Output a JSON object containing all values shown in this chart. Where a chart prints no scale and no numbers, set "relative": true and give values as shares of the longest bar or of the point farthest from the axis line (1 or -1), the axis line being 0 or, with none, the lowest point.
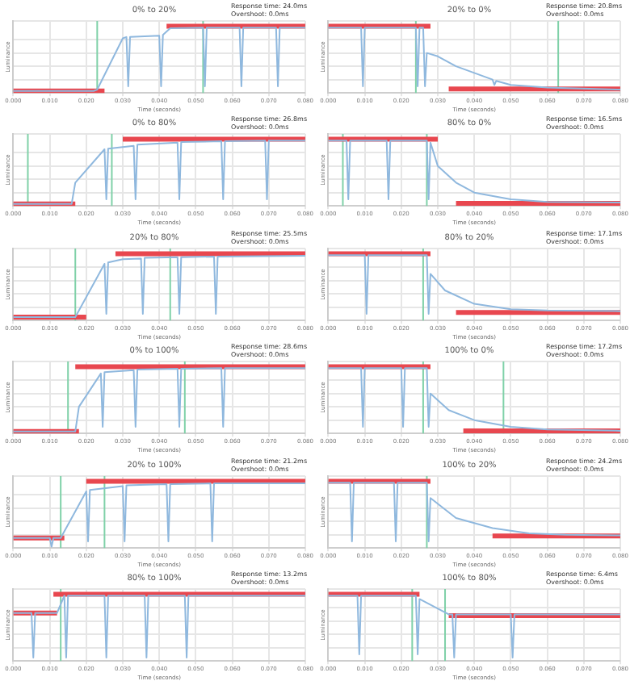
{
  "chart_data": [
    {
      "type": "line",
      "title": "0% to 20%",
      "annotations": [
        "Response time: 24.0ms",
        "Overshoot: 0.0ms"
      ],
      "xlabel": "Time (seconds)",
      "ylabel": "Luminance",
      "relative": true,
      "grid": true,
      "legend": false,
      "marker": "none",
      "xlim": [
        0,
        0.08
      ],
      "xticks": [
        {
          "value": 0,
          "label": "0.000"
        },
        {
          "value": 0.01,
          "label": "0.010"
        },
        {
          "value": 0.02,
          "label": "0.020"
        },
        {
          "value": 0.03,
          "label": "0.030"
        },
        {
          "value": 0.04,
          "label": "0.040"
        },
        {
          "value": 0.05,
          "label": "0.050"
        },
        {
          "value": 0.06,
          "label": "0.060"
        },
        {
          "value": 0.07,
          "label": "0.070"
        },
        {
          "value": 0.08,
          "label": "0.080"
        }
      ],
      "ref_lines": [
        {
          "axis": "x",
          "value": 0.023,
          "color": "#7fd1a8"
        },
        {
          "axis": "x",
          "value": 0.052,
          "color": "#7fd1a8"
        }
      ],
      "series": [
        {
          "color": "#8fb8de",
          "x": [
            0,
            0.022,
            0.023,
            0.03,
            0.031,
            0.0315,
            0.032,
            0.04,
            0.0405,
            0.041,
            0.043,
            0.052,
            0.0525,
            0.053,
            0.062,
            0.0625,
            0.063,
            0.072,
            0.0725,
            0.073,
            0.08
          ],
          "values": [
            0.03,
            0.03,
            0.05,
            0.82,
            0.84,
            0.1,
            0.84,
            0.86,
            0.1,
            0.87,
            0.97,
            0.98,
            0.1,
            0.98,
            0.98,
            0.1,
            0.98,
            0.98,
            0.1,
            0.98,
            0.98
          ]
        },
        {
          "color": "#e8474f",
          "x": [
            0,
            0.025
          ],
          "values": [
            0.03,
            0.03
          ]
        },
        {
          "color": "#e8474f",
          "x": [
            0.042,
            0.08
          ],
          "values": [
            1,
            1
          ]
        }
      ]
    },
    {
      "type": "line",
      "title": "20% to 0%",
      "annotations": [
        "Response time: 20.8ms",
        "Overshoot: 0.0ms"
      ],
      "xlabel": "Time (seconds)",
      "ylabel": "Luminance",
      "relative": true,
      "grid": true,
      "legend": false,
      "marker": "none",
      "xlim": [
        0,
        0.08
      ],
      "xticks": [
        {
          "value": 0,
          "label": "0.000"
        },
        {
          "value": 0.01,
          "label": "0.010"
        },
        {
          "value": 0.02,
          "label": "0.020"
        },
        {
          "value": 0.03,
          "label": "0.030"
        },
        {
          "value": 0.04,
          "label": "0.040"
        },
        {
          "value": 0.05,
          "label": "0.050"
        },
        {
          "value": 0.06,
          "label": "0.060"
        },
        {
          "value": 0.07,
          "label": "0.070"
        },
        {
          "value": 0.08,
          "label": "0.080"
        }
      ],
      "ref_lines": [
        {
          "axis": "x",
          "value": 0.024,
          "color": "#7fd1a8"
        },
        {
          "axis": "x",
          "value": 0.063,
          "color": "#7fd1a8"
        }
      ],
      "series": [
        {
          "color": "#8fb8de",
          "x": [
            0,
            0.009,
            0.0095,
            0.01,
            0.024,
            0.0245,
            0.025,
            0.026,
            0.0265,
            0.027,
            0.03,
            0.035,
            0.04,
            0.045,
            0.0455,
            0.046,
            0.05,
            0.06,
            0.08
          ],
          "values": [
            0.98,
            0.98,
            0.1,
            0.98,
            0.98,
            0.1,
            0.98,
            0.98,
            0.1,
            0.6,
            0.55,
            0.4,
            0.3,
            0.2,
            0.12,
            0.18,
            0.12,
            0.08,
            0.05
          ]
        },
        {
          "color": "#e8474f",
          "x": [
            0,
            0.028
          ],
          "values": [
            1,
            1
          ]
        },
        {
          "color": "#e8474f",
          "x": [
            0.033,
            0.08
          ],
          "values": [
            0.06,
            0.06
          ]
        }
      ]
    },
    {
      "type": "line",
      "title": "0% to 80%",
      "annotations": [
        "Response time: 26.8ms",
        "Overshoot: 0.0ms"
      ],
      "xlabel": "Time (seconds)",
      "ylabel": "Luminance",
      "relative": true,
      "grid": true,
      "legend": false,
      "marker": "none",
      "xlim": [
        0,
        0.08
      ],
      "xticks": [
        {
          "value": 0,
          "label": "0.000"
        },
        {
          "value": 0.01,
          "label": "0.010"
        },
        {
          "value": 0.02,
          "label": "0.020"
        },
        {
          "value": 0.03,
          "label": "0.030"
        },
        {
          "value": 0.04,
          "label": "0.040"
        },
        {
          "value": 0.05,
          "label": "0.050"
        },
        {
          "value": 0.06,
          "label": "0.060"
        },
        {
          "value": 0.07,
          "label": "0.070"
        },
        {
          "value": 0.08,
          "label": "0.080"
        }
      ],
      "ref_lines": [
        {
          "axis": "x",
          "value": 0.004,
          "color": "#7fd1a8"
        },
        {
          "axis": "x",
          "value": 0.027,
          "color": "#7fd1a8"
        }
      ],
      "series": [
        {
          "color": "#8fb8de",
          "x": [
            0,
            0.016,
            0.017,
            0.025,
            0.0255,
            0.026,
            0.033,
            0.0335,
            0.034,
            0.045,
            0.0455,
            0.046,
            0.057,
            0.0575,
            0.058,
            0.069,
            0.0695,
            0.07,
            0.08
          ],
          "values": [
            0.03,
            0.03,
            0.35,
            0.85,
            0.1,
            0.86,
            0.9,
            0.1,
            0.92,
            0.95,
            0.1,
            0.96,
            0.97,
            0.1,
            0.97,
            0.98,
            0.1,
            0.98,
            0.98
          ]
        },
        {
          "color": "#e8474f",
          "x": [
            0,
            0.017
          ],
          "values": [
            0.03,
            0.03
          ]
        },
        {
          "color": "#e8474f",
          "x": [
            0.03,
            0.08
          ],
          "values": [
            1,
            1
          ]
        }
      ]
    },
    {
      "type": "line",
      "title": "80% to 0%",
      "annotations": [
        "Response time: 16.5ms",
        "Overshoot: 0.0ms"
      ],
      "xlabel": "Time (seconds)",
      "ylabel": "Luminance",
      "relative": true,
      "grid": true,
      "legend": false,
      "marker": "none",
      "xlim": [
        0,
        0.08
      ],
      "xticks": [
        {
          "value": 0,
          "label": "0.000"
        },
        {
          "value": 0.01,
          "label": "0.010"
        },
        {
          "value": 0.02,
          "label": "0.020"
        },
        {
          "value": 0.03,
          "label": "0.030"
        },
        {
          "value": 0.04,
          "label": "0.040"
        },
        {
          "value": 0.05,
          "label": "0.050"
        },
        {
          "value": 0.06,
          "label": "0.060"
        },
        {
          "value": 0.07,
          "label": "0.070"
        },
        {
          "value": 0.08,
          "label": "0.080"
        }
      ],
      "ref_lines": [
        {
          "axis": "x",
          "value": 0.004,
          "color": "#7fd1a8"
        },
        {
          "axis": "x",
          "value": 0.027,
          "color": "#7fd1a8"
        }
      ],
      "series": [
        {
          "color": "#8fb8de",
          "x": [
            0,
            0.005,
            0.0055,
            0.006,
            0.016,
            0.0165,
            0.017,
            0.027,
            0.0275,
            0.028,
            0.03,
            0.035,
            0.04,
            0.05,
            0.06,
            0.08
          ],
          "values": [
            0.98,
            0.98,
            0.1,
            0.98,
            0.98,
            0.1,
            0.98,
            0.98,
            0.1,
            0.95,
            0.6,
            0.35,
            0.2,
            0.1,
            0.06,
            0.05
          ]
        },
        {
          "color": "#e8474f",
          "x": [
            0,
            0.03
          ],
          "values": [
            1,
            1
          ]
        },
        {
          "color": "#e8474f",
          "x": [
            0.035,
            0.08
          ],
          "values": [
            0.04,
            0.04
          ]
        }
      ]
    },
    {
      "type": "line",
      "title": "20% to 80%",
      "annotations": [
        "Response time: 25.5ms",
        "Overshoot: 0.0ms"
      ],
      "xlabel": "Time (seconds)",
      "ylabel": "Luminance",
      "relative": true,
      "grid": true,
      "legend": false,
      "marker": "none",
      "xlim": [
        0,
        0.08
      ],
      "xticks": [
        {
          "value": 0,
          "label": "0.000"
        },
        {
          "value": 0.01,
          "label": "0.010"
        },
        {
          "value": 0.02,
          "label": "0.020"
        },
        {
          "value": 0.03,
          "label": "0.030"
        },
        {
          "value": 0.04,
          "label": "0.040"
        },
        {
          "value": 0.05,
          "label": "0.050"
        },
        {
          "value": 0.06,
          "label": "0.060"
        },
        {
          "value": 0.07,
          "label": "0.070"
        },
        {
          "value": 0.08,
          "label": "0.080"
        }
      ],
      "ref_lines": [
        {
          "axis": "x",
          "value": 0.017,
          "color": "#7fd1a8"
        },
        {
          "axis": "x",
          "value": 0.043,
          "color": "#7fd1a8"
        }
      ],
      "series": [
        {
          "color": "#8fb8de",
          "x": [
            0,
            0.017,
            0.025,
            0.0255,
            0.026,
            0.03,
            0.035,
            0.0355,
            0.036,
            0.045,
            0.0455,
            0.046,
            0.055,
            0.0555,
            0.056,
            0.08
          ],
          "values": [
            0.05,
            0.05,
            0.85,
            0.1,
            0.87,
            0.92,
            0.93,
            0.1,
            0.94,
            0.95,
            0.1,
            0.95,
            0.96,
            0.1,
            0.96,
            0.97
          ]
        },
        {
          "color": "#e8474f",
          "x": [
            0,
            0.02
          ],
          "values": [
            0.05,
            0.05
          ]
        },
        {
          "color": "#e8474f",
          "x": [
            0.028,
            0.08
          ],
          "values": [
            1,
            1
          ]
        }
      ]
    },
    {
      "type": "line",
      "title": "80% to 20%",
      "annotations": [
        "Response time: 17.1ms",
        "Overshoot: 0.0ms"
      ],
      "xlabel": "Time (seconds)",
      "ylabel": "Luminance",
      "relative": true,
      "grid": true,
      "legend": false,
      "marker": "none",
      "xlim": [
        0,
        0.08
      ],
      "xticks": [
        {
          "value": 0,
          "label": "0.000"
        },
        {
          "value": 0.01,
          "label": "0.010"
        },
        {
          "value": 0.02,
          "label": "0.020"
        },
        {
          "value": 0.03,
          "label": "0.030"
        },
        {
          "value": 0.04,
          "label": "0.040"
        },
        {
          "value": 0.05,
          "label": "0.050"
        },
        {
          "value": 0.06,
          "label": "0.060"
        },
        {
          "value": 0.07,
          "label": "0.070"
        },
        {
          "value": 0.08,
          "label": "0.080"
        }
      ],
      "ref_lines": [
        {
          "axis": "x",
          "value": 0.026,
          "color": "#7fd1a8"
        }
      ],
      "series": [
        {
          "color": "#8fb8de",
          "x": [
            0,
            0.01,
            0.0105,
            0.011,
            0.027,
            0.0275,
            0.028,
            0.032,
            0.04,
            0.05,
            0.06,
            0.08
          ],
          "values": [
            0.98,
            0.98,
            0.1,
            0.98,
            0.98,
            0.1,
            0.7,
            0.45,
            0.25,
            0.17,
            0.15,
            0.14
          ]
        },
        {
          "color": "#e8474f",
          "x": [
            0,
            0.028
          ],
          "values": [
            1,
            1
          ]
        },
        {
          "color": "#e8474f",
          "x": [
            0.035,
            0.08
          ],
          "values": [
            0.12,
            0.12
          ]
        }
      ]
    },
    {
      "type": "line",
      "title": "0% to 100%",
      "annotations": [
        "Response time: 28.6ms",
        "Overshoot: 0.0ms"
      ],
      "xlabel": "Time (seconds)",
      "ylabel": "Luminance",
      "relative": true,
      "grid": true,
      "legend": false,
      "marker": "none",
      "xlim": [
        0,
        0.08
      ],
      "xticks": [
        {
          "value": 0,
          "label": "0.000"
        },
        {
          "value": 0.01,
          "label": "0.010"
        },
        {
          "value": 0.02,
          "label": "0.020"
        },
        {
          "value": 0.03,
          "label": "0.030"
        },
        {
          "value": 0.04,
          "label": "0.040"
        },
        {
          "value": 0.05,
          "label": "0.050"
        },
        {
          "value": 0.06,
          "label": "0.060"
        },
        {
          "value": 0.07,
          "label": "0.070"
        },
        {
          "value": 0.08,
          "label": "0.080"
        }
      ],
      "ref_lines": [
        {
          "axis": "x",
          "value": 0.015,
          "color": "#7fd1a8"
        },
        {
          "axis": "x",
          "value": 0.047,
          "color": "#7fd1a8"
        }
      ],
      "series": [
        {
          "color": "#8fb8de",
          "x": [
            0,
            0.017,
            0.018,
            0.024,
            0.0245,
            0.025,
            0.033,
            0.0335,
            0.034,
            0.045,
            0.0455,
            0.046,
            0.057,
            0.0575,
            0.058,
            0.08
          ],
          "values": [
            0.03,
            0.03,
            0.4,
            0.9,
            0.1,
            0.92,
            0.95,
            0.1,
            0.96,
            0.97,
            0.1,
            0.97,
            0.98,
            0.1,
            0.98,
            0.98
          ]
        },
        {
          "color": "#e8474f",
          "x": [
            0,
            0.018
          ],
          "values": [
            0.03,
            0.03
          ]
        },
        {
          "color": "#e8474f",
          "x": [
            0.017,
            0.08
          ],
          "values": [
            1,
            1
          ]
        }
      ]
    },
    {
      "type": "line",
      "title": "100% to 0%",
      "annotations": [
        "Response time: 17.2ms",
        "Overshoot: 0.0ms"
      ],
      "xlabel": "Time (seconds)",
      "ylabel": "Luminance",
      "relative": true,
      "grid": true,
      "legend": false,
      "marker": "none",
      "xlim": [
        0,
        0.08
      ],
      "xticks": [
        {
          "value": 0,
          "label": "0.000"
        },
        {
          "value": 0.01,
          "label": "0.010"
        },
        {
          "value": 0.02,
          "label": "0.020"
        },
        {
          "value": 0.03,
          "label": "0.030"
        },
        {
          "value": 0.04,
          "label": "0.040"
        },
        {
          "value": 0.05,
          "label": "0.050"
        },
        {
          "value": 0.06,
          "label": "0.060"
        },
        {
          "value": 0.07,
          "label": "0.070"
        },
        {
          "value": 0.08,
          "label": "0.080"
        }
      ],
      "ref_lines": [
        {
          "axis": "x",
          "value": 0.026,
          "color": "#7fd1a8"
        },
        {
          "axis": "x",
          "value": 0.048,
          "color": "#7fd1a8"
        }
      ],
      "series": [
        {
          "color": "#8fb8de",
          "x": [
            0,
            0.009,
            0.0095,
            0.01,
            0.02,
            0.0205,
            0.021,
            0.027,
            0.0275,
            0.028,
            0.033,
            0.04,
            0.05,
            0.06,
            0.08
          ],
          "values": [
            0.98,
            0.98,
            0.1,
            0.98,
            0.98,
            0.1,
            0.98,
            0.98,
            0.1,
            0.6,
            0.35,
            0.2,
            0.1,
            0.06,
            0.04
          ]
        },
        {
          "color": "#e8474f",
          "x": [
            0,
            0.028
          ],
          "values": [
            1,
            1
          ]
        },
        {
          "color": "#e8474f",
          "x": [
            0.037,
            0.08
          ],
          "values": [
            0.04,
            0.04
          ]
        }
      ]
    },
    {
      "type": "line",
      "title": "20% to 100%",
      "annotations": [
        "Response time: 21.2ms",
        "Overshoot: 0.0ms"
      ],
      "xlabel": "Time (seconds)",
      "ylabel": "Luminance",
      "relative": true,
      "grid": true,
      "legend": false,
      "marker": "none",
      "xlim": [
        0,
        0.08
      ],
      "xticks": [
        {
          "value": 0,
          "label": "0.000"
        },
        {
          "value": 0.01,
          "label": "0.010"
        },
        {
          "value": 0.02,
          "label": "0.020"
        },
        {
          "value": 0.03,
          "label": "0.030"
        },
        {
          "value": 0.04,
          "label": "0.040"
        },
        {
          "value": 0.05,
          "label": "0.050"
        },
        {
          "value": 0.06,
          "label": "0.060"
        },
        {
          "value": 0.07,
          "label": "0.070"
        },
        {
          "value": 0.08,
          "label": "0.080"
        }
      ],
      "ref_lines": [
        {
          "axis": "x",
          "value": 0.013,
          "color": "#7fd1a8"
        },
        {
          "axis": "x",
          "value": 0.025,
          "color": "#7fd1a8"
        }
      ],
      "series": [
        {
          "color": "#8fb8de",
          "x": [
            0,
            0.01,
            0.0105,
            0.011,
            0.013,
            0.02,
            0.0205,
            0.021,
            0.03,
            0.0305,
            0.031,
            0.042,
            0.0425,
            0.043,
            0.054,
            0.0545,
            0.055,
            0.08
          ],
          "values": [
            0.15,
            0.15,
            0.02,
            0.15,
            0.15,
            0.85,
            0.1,
            0.87,
            0.93,
            0.1,
            0.94,
            0.96,
            0.1,
            0.96,
            0.97,
            0.1,
            0.97,
            0.97
          ]
        },
        {
          "color": "#e8474f",
          "x": [
            0,
            0.014
          ],
          "values": [
            0.15,
            0.15
          ]
        },
        {
          "color": "#e8474f",
          "x": [
            0.02,
            0.08
          ],
          "values": [
            1,
            1
          ]
        }
      ]
    },
    {
      "type": "line",
      "title": "100% to 20%",
      "annotations": [
        "Response time: 24.2ms",
        "Overshoot: 0.0ms"
      ],
      "xlabel": "Time (seconds)",
      "ylabel": "Luminance",
      "relative": true,
      "grid": true,
      "legend": false,
      "marker": "none",
      "xlim": [
        0,
        0.08
      ],
      "xticks": [
        {
          "value": 0,
          "label": "0.000"
        },
        {
          "value": 0.01,
          "label": "0.010"
        },
        {
          "value": 0.02,
          "label": "0.020"
        },
        {
          "value": 0.03,
          "label": "0.030"
        },
        {
          "value": 0.04,
          "label": "0.040"
        },
        {
          "value": 0.05,
          "label": "0.050"
        },
        {
          "value": 0.06,
          "label": "0.060"
        },
        {
          "value": 0.07,
          "label": "0.070"
        },
        {
          "value": 0.08,
          "label": "0.080"
        }
      ],
      "ref_lines": [
        {
          "axis": "x",
          "value": 0.027,
          "color": "#7fd1a8"
        }
      ],
      "series": [
        {
          "color": "#8fb8de",
          "x": [
            0,
            0.006,
            0.0065,
            0.007,
            0.018,
            0.0185,
            0.019,
            0.027,
            0.0275,
            0.028,
            0.035,
            0.045,
            0.055,
            0.065,
            0.08
          ],
          "values": [
            0.98,
            0.98,
            0.1,
            0.98,
            0.98,
            0.1,
            0.98,
            0.98,
            0.1,
            0.75,
            0.45,
            0.3,
            0.22,
            0.2,
            0.19
          ]
        },
        {
          "color": "#e8474f",
          "x": [
            0,
            0.028
          ],
          "values": [
            1,
            1
          ]
        },
        {
          "color": "#e8474f",
          "x": [
            0.045,
            0.08
          ],
          "values": [
            0.18,
            0.18
          ]
        }
      ]
    },
    {
      "type": "line",
      "title": "80% to 100%",
      "annotations": [
        "Response time: 13.2ms",
        "Overshoot: 0.0ms"
      ],
      "xlabel": "Time (seconds)",
      "ylabel": "Luminance",
      "relative": true,
      "grid": true,
      "legend": false,
      "marker": "none",
      "xlim": [
        0,
        0.08
      ],
      "xticks": [
        {
          "value": 0,
          "label": "0.000"
        },
        {
          "value": 0.01,
          "label": "0.010"
        },
        {
          "value": 0.02,
          "label": "0.020"
        },
        {
          "value": 0.03,
          "label": "0.030"
        },
        {
          "value": 0.04,
          "label": "0.040"
        },
        {
          "value": 0.05,
          "label": "0.050"
        },
        {
          "value": 0.06,
          "label": "0.060"
        },
        {
          "value": 0.07,
          "label": "0.070"
        },
        {
          "value": 0.08,
          "label": "0.080"
        }
      ],
      "ref_lines": [
        {
          "axis": "x",
          "value": 0.013,
          "color": "#7fd1a8"
        }
      ],
      "series": [
        {
          "color": "#8fb8de",
          "x": [
            0,
            0.005,
            0.0055,
            0.006,
            0.012,
            0.014,
            0.0145,
            0.015,
            0.025,
            0.0255,
            0.026,
            0.036,
            0.0365,
            0.037,
            0.047,
            0.0475,
            0.048,
            0.08
          ],
          "values": [
            0.72,
            0.72,
            0.05,
            0.72,
            0.72,
            0.98,
            0.05,
            0.98,
            0.98,
            0.05,
            0.98,
            0.98,
            0.05,
            0.98,
            0.98,
            0.05,
            0.98,
            0.98
          ]
        },
        {
          "color": "#e8474f",
          "x": [
            0,
            0.012
          ],
          "values": [
            0.72,
            0.72
          ]
        },
        {
          "color": "#e8474f",
          "x": [
            0.011,
            0.08
          ],
          "values": [
            1,
            1
          ]
        }
      ]
    },
    {
      "type": "line",
      "title": "100% to 80%",
      "annotations": [
        "Response time: 6.4ms",
        "Overshoot: 0.0ms"
      ],
      "xlabel": "Time (seconds)",
      "ylabel": "Luminance",
      "relative": true,
      "grid": true,
      "legend": false,
      "marker": "none",
      "xlim": [
        0,
        0.08
      ],
      "xticks": [
        {
          "value": 0,
          "label": "0.000"
        },
        {
          "value": 0.01,
          "label": "0.010"
        },
        {
          "value": 0.02,
          "label": "0.020"
        },
        {
          "value": 0.03,
          "label": "0.030"
        },
        {
          "value": 0.04,
          "label": "0.040"
        },
        {
          "value": 0.05,
          "label": "0.050"
        },
        {
          "value": 0.06,
          "label": "0.060"
        },
        {
          "value": 0.07,
          "label": "0.070"
        },
        {
          "value": 0.08,
          "label": "0.080"
        }
      ],
      "ref_lines": [
        {
          "axis": "x",
          "value": 0.023,
          "color": "#7fd1a8"
        },
        {
          "axis": "x",
          "value": 0.032,
          "color": "#7fd1a8"
        }
      ],
      "series": [
        {
          "color": "#8fb8de",
          "x": [
            0,
            0.008,
            0.0085,
            0.009,
            0.024,
            0.0245,
            0.025,
            0.033,
            0.034,
            0.0345,
            0.035,
            0.05,
            0.0505,
            0.051,
            0.08
          ],
          "values": [
            0.98,
            0.98,
            0.1,
            0.98,
            0.98,
            0.1,
            0.93,
            0.7,
            0.7,
            0.05,
            0.7,
            0.7,
            0.05,
            0.7,
            0.7
          ]
        },
        {
          "color": "#e8474f",
          "x": [
            0,
            0.025
          ],
          "values": [
            1,
            1
          ]
        },
        {
          "color": "#e8474f",
          "x": [
            0.033,
            0.08
          ],
          "values": [
            0.68,
            0.68
          ]
        }
      ]
    }
  ]
}
